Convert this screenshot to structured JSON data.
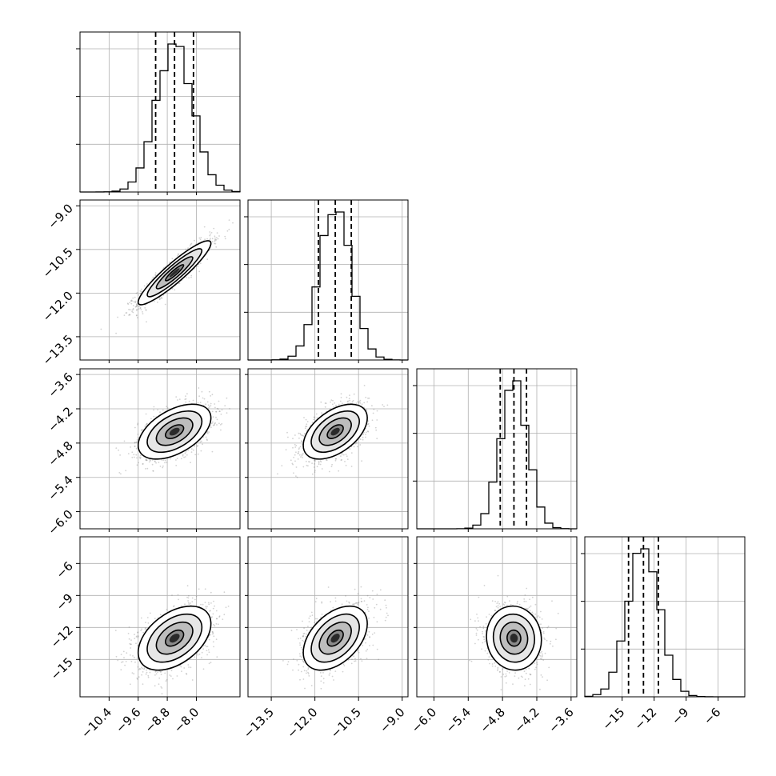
{
  "chart_data": {
    "type": "corner",
    "parameters": [
      {
        "range": [
          -11.2,
          -6.8
        ],
        "ticks": [
          -10.4,
          -9.6,
          -8.8,
          -8.0
        ],
        "tick_labels": [
          "−10.4",
          "−9.6",
          "−8.8",
          "−8.0"
        ],
        "mean": -8.6,
        "sigma": 0.5,
        "quantiles": [
          -9.12,
          -8.6,
          -8.08
        ]
      },
      {
        "range": [
          -14.3,
          -8.8
        ],
        "ticks": [
          -13.5,
          -12.0,
          -10.5,
          -9.0
        ],
        "tick_labels": [
          "−13.5",
          "−12.0",
          "−10.5",
          "−9.0"
        ],
        "mean": -11.3,
        "sigma": 0.55,
        "quantiles": [
          -11.88,
          -11.3,
          -10.75
        ]
      },
      {
        "range": [
          -6.3,
          -3.5
        ],
        "ticks": [
          -6.0,
          -5.4,
          -4.8,
          -4.2,
          -3.6
        ],
        "tick_labels": [
          "−6.0",
          "−5.4",
          "−4.8",
          "−4.2",
          "−3.6"
        ],
        "mean": -4.6,
        "sigma": 0.24,
        "quantiles": [
          -4.84,
          -4.6,
          -4.38
        ]
      },
      {
        "range": [
          -18.5,
          -3.5
        ],
        "ticks": [
          -15,
          -12,
          -9,
          -6
        ],
        "tick_labels": [
          "−15",
          "−12",
          "−9",
          "−6"
        ],
        "mean": -13.0,
        "sigma": 1.5,
        "quantiles": [
          -14.4,
          -13.0,
          -11.6
        ]
      }
    ],
    "correlations": [
      [
        1.0,
        0.92,
        0.5,
        0.45
      ],
      [
        0.92,
        1.0,
        0.5,
        0.45
      ],
      [
        0.5,
        0.5,
        1.0,
        -0.05
      ],
      [
        0.45,
        0.45,
        -0.05,
        1.0
      ]
    ],
    "diagonal_hist_ticks": [
      3,
      3,
      3,
      3
    ],
    "grid": true,
    "contour_levels_sigma": [
      0.5,
      1.0,
      1.5,
      2.0
    ]
  }
}
